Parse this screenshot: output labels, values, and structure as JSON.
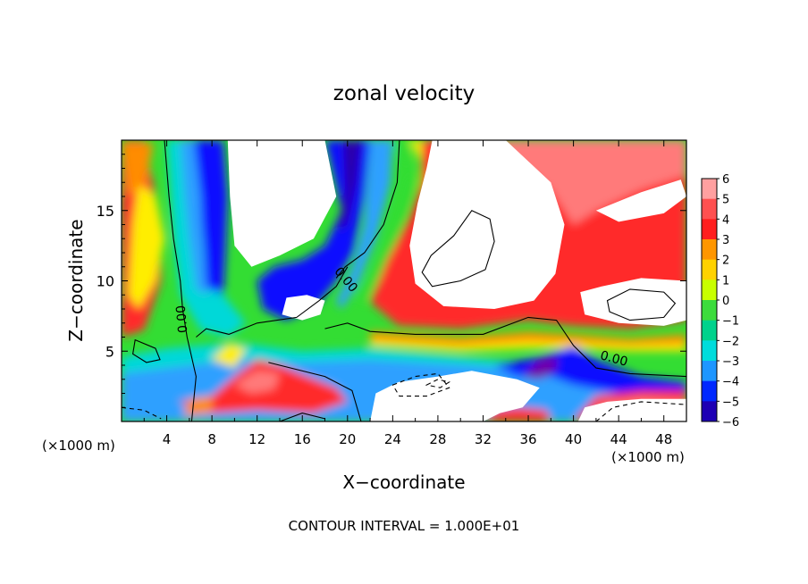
{
  "chart_data": {
    "type": "heatmap",
    "title": "zonal velocity",
    "xlabel": "X−coordinate",
    "ylabel": "Z−coordinate",
    "x_unit_left": "(×1000 m)",
    "x_unit_right": "(×1000 m)",
    "footer": "CONTOUR INTERVAL = 1.000E+01",
    "xlim": [
      0,
      50
    ],
    "ylim": [
      0,
      20
    ],
    "x_ticks": [
      4,
      8,
      12,
      16,
      20,
      24,
      28,
      32,
      36,
      40,
      44,
      48
    ],
    "y_ticks": [
      5,
      10,
      15
    ],
    "contour_labels": [
      "0.00",
      "0.00",
      "0.00"
    ],
    "colorbar": {
      "levels": [
        6,
        5,
        4,
        3,
        2,
        1,
        0,
        -1,
        -2,
        -3,
        -4,
        -5,
        -6
      ],
      "colors": [
        "#ffa0a0",
        "#ff5050",
        "#ff1e1e",
        "#ff9600",
        "#ffd200",
        "#c8ff00",
        "#3cdc3c",
        "#00d28c",
        "#00dcdc",
        "#1e96ff",
        "#0028ff",
        "#1e00b4",
        "#7800b4"
      ]
    },
    "field_colors": {
      "red": "#ff2a2a",
      "pink": "#ff7a7a",
      "orange": "#ff8c00",
      "yellow": "#ffee00",
      "green": "#33dd33",
      "cyan": "#00d8d8",
      "lightblue": "#2fa0ff",
      "blue": "#1010ff",
      "navy": "#2a00aa",
      "purple": "#7000a8",
      "white": "#ffffff"
    }
  }
}
